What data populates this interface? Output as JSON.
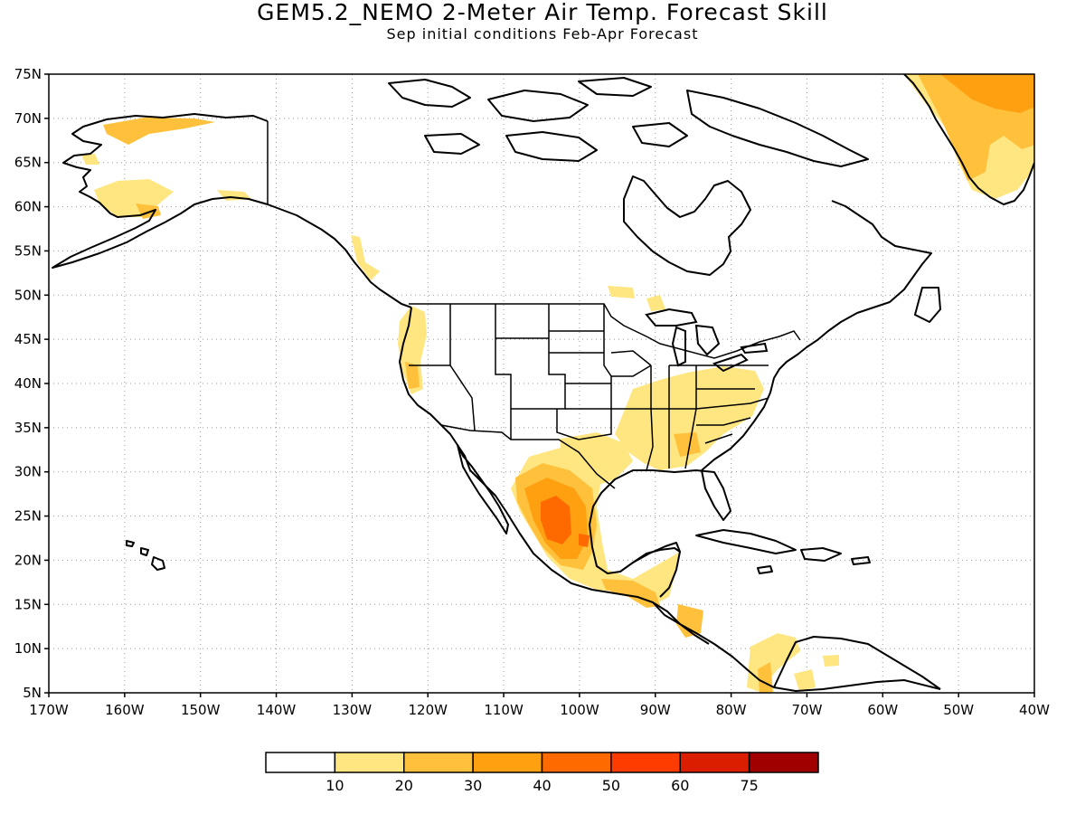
{
  "title": "GEM5.2_NEMO 2-Meter Air Temp. Forecast Skill",
  "subtitle": "Sep initial conditions  Feb-Apr Forecast",
  "axes": {
    "lon_ticks": [
      "170W",
      "160W",
      "150W",
      "140W",
      "130W",
      "120W",
      "110W",
      "100W",
      "90W",
      "80W",
      "70W",
      "60W",
      "50W",
      "40W"
    ],
    "lat_ticks": [
      "75N",
      "70N",
      "65N",
      "60N",
      "55N",
      "50N",
      "45N",
      "40N",
      "35N",
      "30N",
      "25N",
      "20N",
      "15N",
      "10N",
      "5N"
    ],
    "lon_range": [
      -170,
      -40
    ],
    "lat_range": [
      5,
      75
    ],
    "grid": "dotted"
  },
  "legend": {
    "labels": [
      "10",
      "20",
      "30",
      "40",
      "50",
      "60",
      "75"
    ],
    "colors": [
      "#ffffff",
      "#ffe680",
      "#ffc03c",
      "#ffa010",
      "#ff6a00",
      "#ff3c00",
      "#dc1e00",
      "#a00000"
    ]
  },
  "chart_data": {
    "type": "heatmap",
    "title": "GEM5.2_NEMO 2-Meter Air Temp. Forecast Skill",
    "subtitle": "Sep initial conditions  Feb-Apr Forecast",
    "xlabel": "",
    "ylabel": "",
    "xlim": [
      -170,
      -40
    ],
    "ylim": [
      5,
      75
    ],
    "levels": [
      10,
      20,
      30,
      40,
      50,
      60,
      75
    ],
    "regions": [
      {
        "name": "Mexico central",
        "lon": -103,
        "lat": 24,
        "level": "40-50"
      },
      {
        "name": "Mexico north/Texas",
        "lon": -102,
        "lat": 28,
        "level": "30-40"
      },
      {
        "name": "Southeast US",
        "lon": -86,
        "lat": 35,
        "level": "10-20"
      },
      {
        "name": "US West Coast",
        "lon": -123,
        "lat": 41,
        "level": "10-30"
      },
      {
        "name": "Alaska",
        "lon": -157,
        "lat": 61,
        "level": "10-20"
      },
      {
        "name": "Greenland",
        "lon": -45,
        "lat": 70,
        "level": "20-40"
      },
      {
        "name": "Central America",
        "lon": -87,
        "lat": 15,
        "level": "20-30"
      }
    ]
  }
}
